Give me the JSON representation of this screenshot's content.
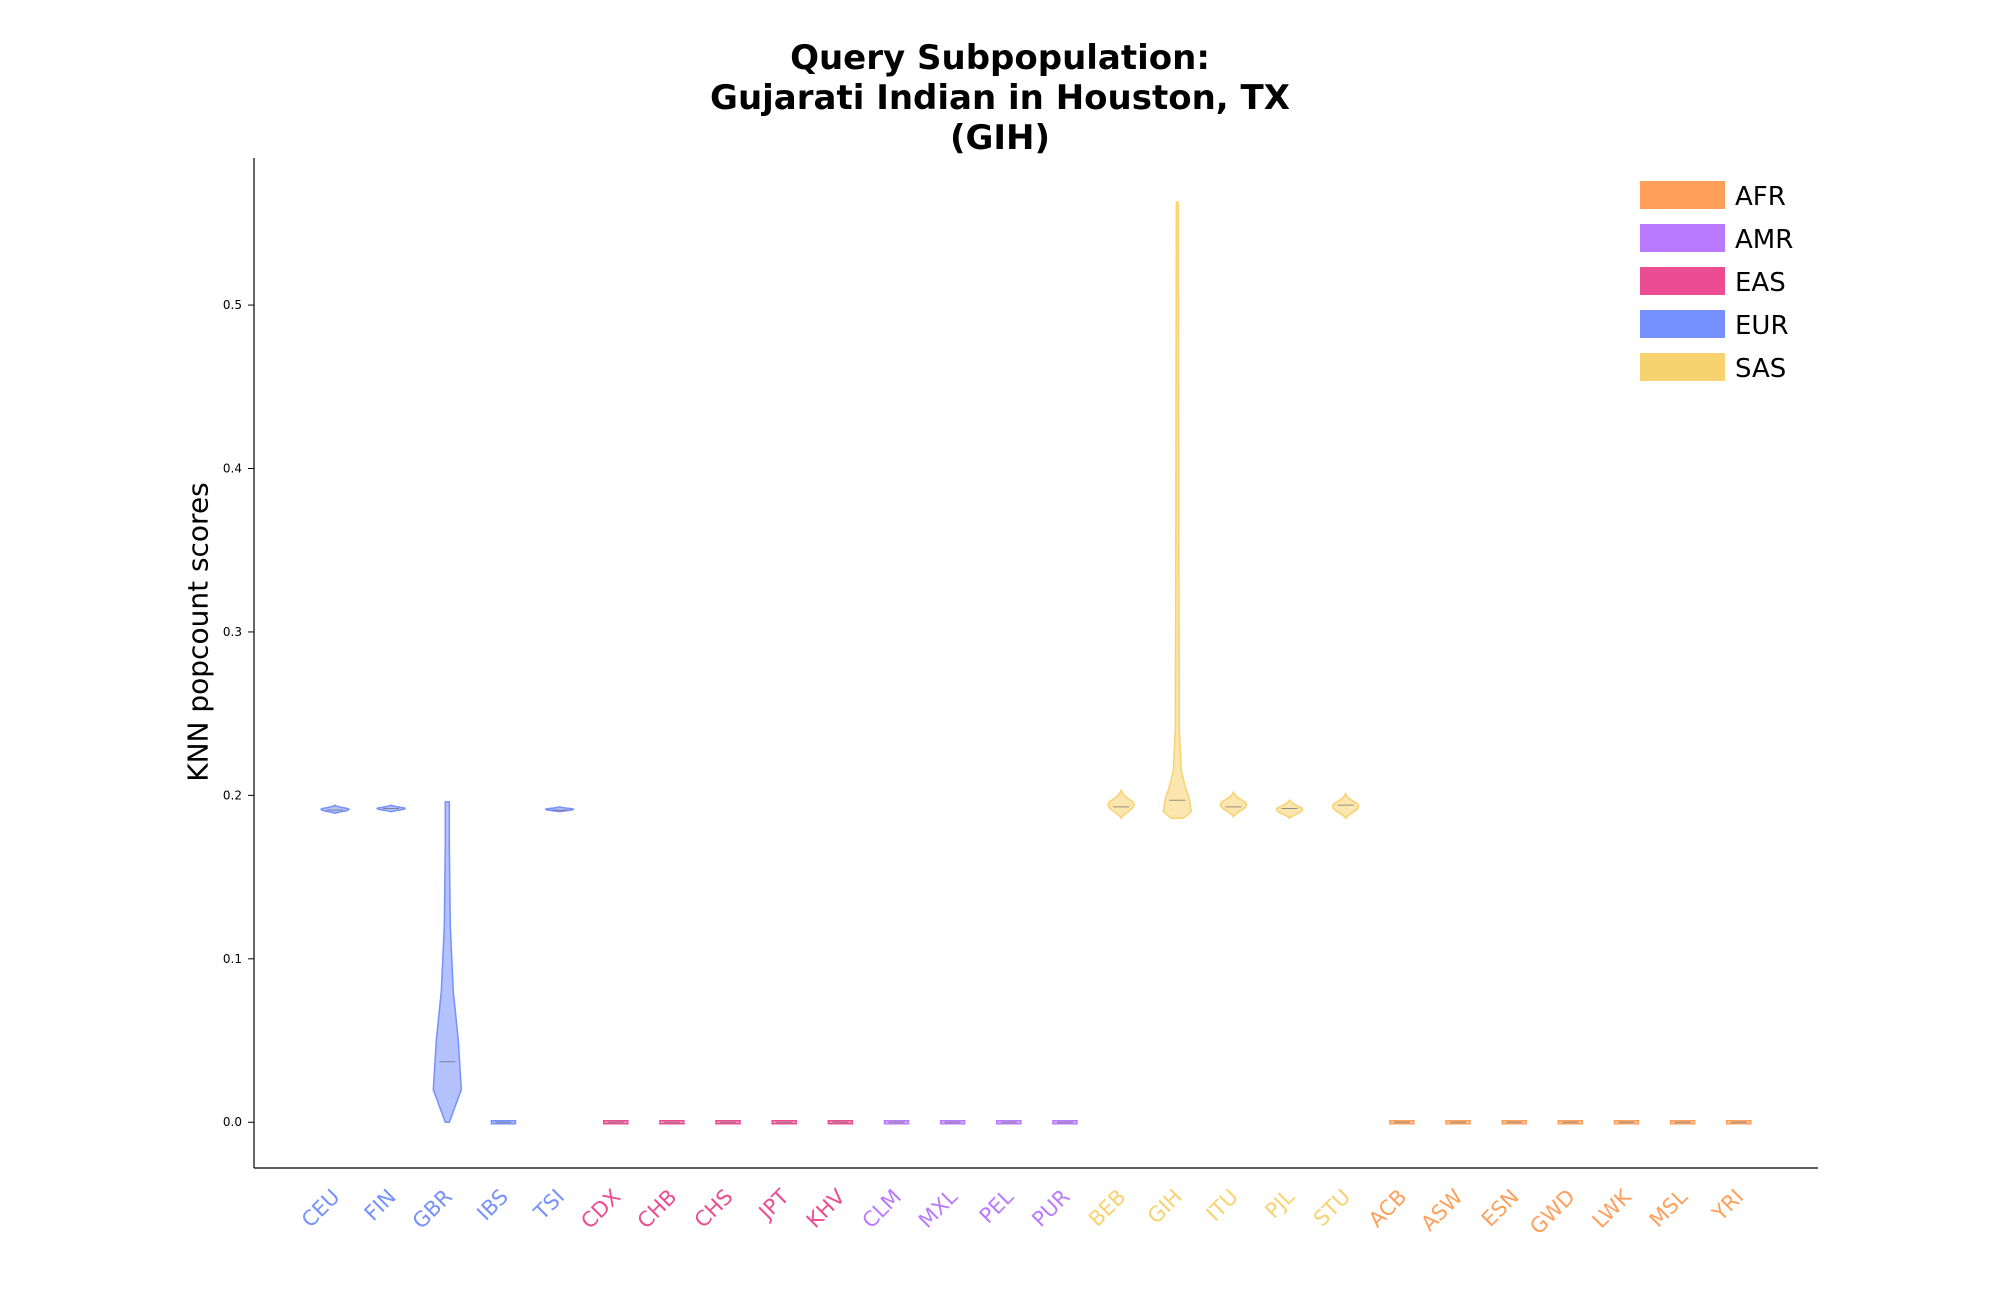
{
  "chart_data": {
    "type": "violin",
    "title_lines": [
      "Query Subpopulation:",
      "Gujarati Indian in Houston, TX",
      "(GIH)"
    ],
    "xlabel": "",
    "ylabel": "KNN popcount scores",
    "ylim": [
      -0.028,
      0.59
    ],
    "yticks": [
      0.0,
      0.1,
      0.2,
      0.3,
      0.4,
      0.5
    ],
    "ytick_labels": [
      "0.0",
      "0.1",
      "0.2",
      "0.3",
      "0.4",
      "0.5"
    ],
    "grid": false,
    "legend_position": "top-right",
    "groups": [
      {
        "name": "AFR",
        "color": "#FF9F5A"
      },
      {
        "name": "AMR",
        "color": "#BA7AFF"
      },
      {
        "name": "EAS",
        "color": "#EC4C92"
      },
      {
        "name": "EUR",
        "color": "#7690FF"
      },
      {
        "name": "SAS",
        "color": "#F8D26E"
      }
    ],
    "categories": [
      {
        "label": "CEU",
        "group": "EUR",
        "min": 0.189,
        "max": 0.194,
        "median": 0.191
      },
      {
        "label": "FIN",
        "group": "EUR",
        "min": 0.19,
        "max": 0.194,
        "median": 0.192
      },
      {
        "label": "GBR",
        "group": "EUR",
        "min": 0.0,
        "max": 0.196,
        "median": 0.037
      },
      {
        "label": "IBS",
        "group": "EUR",
        "min": 0.0,
        "max": 0.0,
        "median": 0.0
      },
      {
        "label": "TSI",
        "group": "EUR",
        "min": 0.19,
        "max": 0.193,
        "median": 0.191
      },
      {
        "label": "CDX",
        "group": "EAS",
        "min": 0.0,
        "max": 0.0,
        "median": 0.0
      },
      {
        "label": "CHB",
        "group": "EAS",
        "min": 0.0,
        "max": 0.0,
        "median": 0.0
      },
      {
        "label": "CHS",
        "group": "EAS",
        "min": 0.0,
        "max": 0.0,
        "median": 0.0
      },
      {
        "label": "JPT",
        "group": "EAS",
        "min": 0.0,
        "max": 0.0,
        "median": 0.0
      },
      {
        "label": "KHV",
        "group": "EAS",
        "min": 0.0,
        "max": 0.0,
        "median": 0.0
      },
      {
        "label": "CLM",
        "group": "AMR",
        "min": 0.0,
        "max": 0.0,
        "median": 0.0
      },
      {
        "label": "MXL",
        "group": "AMR",
        "min": 0.0,
        "max": 0.0,
        "median": 0.0
      },
      {
        "label": "PEL",
        "group": "AMR",
        "min": 0.0,
        "max": 0.0,
        "median": 0.0
      },
      {
        "label": "PUR",
        "group": "AMR",
        "min": 0.0,
        "max": 0.0,
        "median": 0.0
      },
      {
        "label": "BEB",
        "group": "SAS",
        "min": 0.186,
        "max": 0.203,
        "median": 0.193
      },
      {
        "label": "GIH",
        "group": "SAS",
        "min": 0.186,
        "max": 0.563,
        "median": 0.197
      },
      {
        "label": "ITU",
        "group": "SAS",
        "min": 0.187,
        "max": 0.202,
        "median": 0.193
      },
      {
        "label": "PJL",
        "group": "SAS",
        "min": 0.186,
        "max": 0.197,
        "median": 0.192
      },
      {
        "label": "STU",
        "group": "SAS",
        "min": 0.186,
        "max": 0.201,
        "median": 0.194
      },
      {
        "label": "ACB",
        "group": "AFR",
        "min": 0.0,
        "max": 0.0,
        "median": 0.0
      },
      {
        "label": "ASW",
        "group": "AFR",
        "min": 0.0,
        "max": 0.0,
        "median": 0.0
      },
      {
        "label": "ESN",
        "group": "AFR",
        "min": 0.0,
        "max": 0.0,
        "median": 0.0
      },
      {
        "label": "GWD",
        "group": "AFR",
        "min": 0.0,
        "max": 0.0,
        "median": 0.0
      },
      {
        "label": "LWK",
        "group": "AFR",
        "min": 0.0,
        "max": 0.0,
        "median": 0.0
      },
      {
        "label": "MSL",
        "group": "AFR",
        "min": 0.0,
        "max": 0.0,
        "median": 0.0
      },
      {
        "label": "YRI",
        "group": "AFR",
        "min": 0.0,
        "max": 0.0,
        "median": 0.0
      }
    ]
  }
}
